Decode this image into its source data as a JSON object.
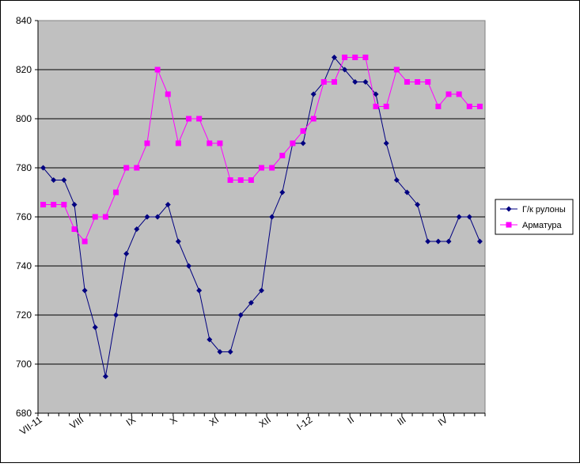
{
  "chart_data": {
    "type": "line",
    "title": "",
    "xlabel": "",
    "ylabel": "",
    "ylim": [
      680,
      840
    ],
    "yticks": [
      680,
      700,
      720,
      740,
      760,
      780,
      800,
      820,
      840
    ],
    "grid": true,
    "legend_position": "right",
    "x_tick_labels": [
      {
        "label": "VII-11",
        "index": 0
      },
      {
        "label": "VIII",
        "index": 4
      },
      {
        "label": "IX",
        "index": 9
      },
      {
        "label": "X",
        "index": 13
      },
      {
        "label": "XI",
        "index": 17
      },
      {
        "label": "XII",
        "index": 22
      },
      {
        "label": "I-12",
        "index": 26
      },
      {
        "label": "II",
        "index": 30
      },
      {
        "label": "III",
        "index": 35
      },
      {
        "label": "IV",
        "index": 39
      }
    ],
    "series": [
      {
        "name": "Г/к рулоны",
        "color": "#000080",
        "marker": "diamond",
        "values": [
          780,
          775,
          775,
          765,
          730,
          715,
          695,
          720,
          745,
          755,
          760,
          760,
          765,
          750,
          740,
          730,
          710,
          705,
          705,
          720,
          725,
          730,
          760,
          770,
          790,
          790,
          810,
          815,
          825,
          820,
          815,
          815,
          810,
          790,
          775,
          770,
          765,
          750,
          750,
          750,
          760,
          760,
          750
        ]
      },
      {
        "name": "Арматура",
        "color": "#ff00ff",
        "marker": "square",
        "values": [
          765,
          765,
          765,
          755,
          750,
          760,
          760,
          770,
          780,
          780,
          790,
          820,
          810,
          790,
          800,
          800,
          790,
          790,
          775,
          775,
          775,
          780,
          780,
          785,
          790,
          795,
          800,
          815,
          815,
          825,
          825,
          825,
          805,
          805,
          820,
          815,
          815,
          815,
          805,
          810,
          810,
          805,
          805
        ]
      }
    ]
  }
}
